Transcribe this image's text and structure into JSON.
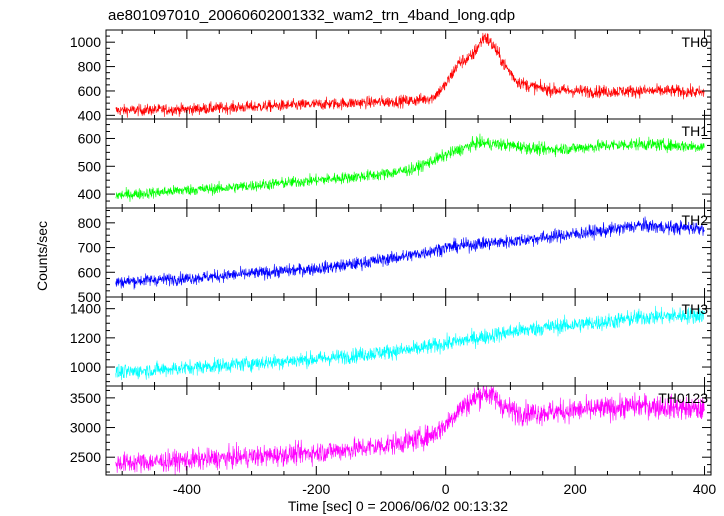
{
  "chart_data": {
    "type": "line",
    "title": "ae801097010_20060602001332_wam2_trn_4band_long.qdp",
    "xlabel": "Time [sec] 0 = 2006/06/02 00:13:32",
    "ylabel": "Counts/sec",
    "xlim": [
      -525,
      410
    ],
    "xticks": [
      -400,
      -200,
      0,
      200,
      400
    ],
    "panels": [
      {
        "name": "TH0",
        "color": "#ff0000",
        "ylim": [
          370,
          1100
        ],
        "yticks": [
          400,
          600,
          800,
          1000
        ],
        "x": [
          -510,
          -450,
          -400,
          -350,
          -300,
          -250,
          -200,
          -150,
          -100,
          -50,
          -20,
          0,
          20,
          40,
          60,
          75,
          90,
          110,
          130,
          160,
          200,
          250,
          300,
          350,
          400
        ],
        "y": [
          440,
          445,
          450,
          460,
          470,
          480,
          490,
          500,
          510,
          520,
          545,
          650,
          830,
          880,
          1050,
          960,
          820,
          680,
          640,
          610,
          600,
          595,
          600,
          600,
          585
        ]
      },
      {
        "name": "TH1",
        "color": "#00ff00",
        "ylim": [
          350,
          670
        ],
        "yticks": [
          400,
          500,
          600
        ],
        "x": [
          -510,
          -450,
          -400,
          -350,
          -300,
          -250,
          -200,
          -150,
          -100,
          -50,
          0,
          50,
          100,
          150,
          200,
          250,
          300,
          350,
          400
        ],
        "y": [
          395,
          405,
          415,
          420,
          430,
          440,
          450,
          460,
          470,
          490,
          540,
          585,
          575,
          560,
          565,
          575,
          580,
          575,
          570
        ]
      },
      {
        "name": "TH2",
        "color": "#0000ff",
        "ylim": [
          500,
          860
        ],
        "yticks": [
          500,
          600,
          700,
          800
        ],
        "x": [
          -510,
          -450,
          -400,
          -350,
          -300,
          -250,
          -200,
          -150,
          -100,
          -50,
          0,
          50,
          100,
          150,
          200,
          250,
          300,
          350,
          400
        ],
        "y": [
          560,
          570,
          575,
          585,
          595,
          605,
          615,
          630,
          650,
          670,
          700,
          715,
          725,
          740,
          755,
          770,
          790,
          780,
          780
        ]
      },
      {
        "name": "TH3",
        "color": "#00ffff",
        "ylim": [
          870,
          1480
        ],
        "yticks": [
          1000,
          1200,
          1400
        ],
        "x": [
          -510,
          -450,
          -400,
          -350,
          -300,
          -250,
          -200,
          -150,
          -100,
          -50,
          0,
          50,
          100,
          150,
          200,
          250,
          300,
          350,
          400
        ],
        "y": [
          960,
          980,
          995,
          1010,
          1025,
          1040,
          1055,
          1075,
          1100,
          1120,
          1160,
          1200,
          1240,
          1270,
          1290,
          1310,
          1340,
          1350,
          1355
        ]
      },
      {
        "name": "TH0123",
        "color": "#ff00ff",
        "ylim": [
          2200,
          3700
        ],
        "yticks": [
          2500,
          3000,
          3500
        ],
        "x": [
          -510,
          -450,
          -400,
          -350,
          -300,
          -250,
          -200,
          -150,
          -100,
          -50,
          -20,
          0,
          20,
          40,
          60,
          75,
          90,
          110,
          130,
          160,
          200,
          250,
          300,
          350,
          400
        ],
        "y": [
          2400,
          2420,
          2450,
          2480,
          2510,
          2540,
          2580,
          2630,
          2690,
          2780,
          2880,
          3050,
          3300,
          3450,
          3600,
          3520,
          3350,
          3250,
          3240,
          3260,
          3290,
          3320,
          3370,
          3340,
          3300
        ]
      }
    ]
  }
}
